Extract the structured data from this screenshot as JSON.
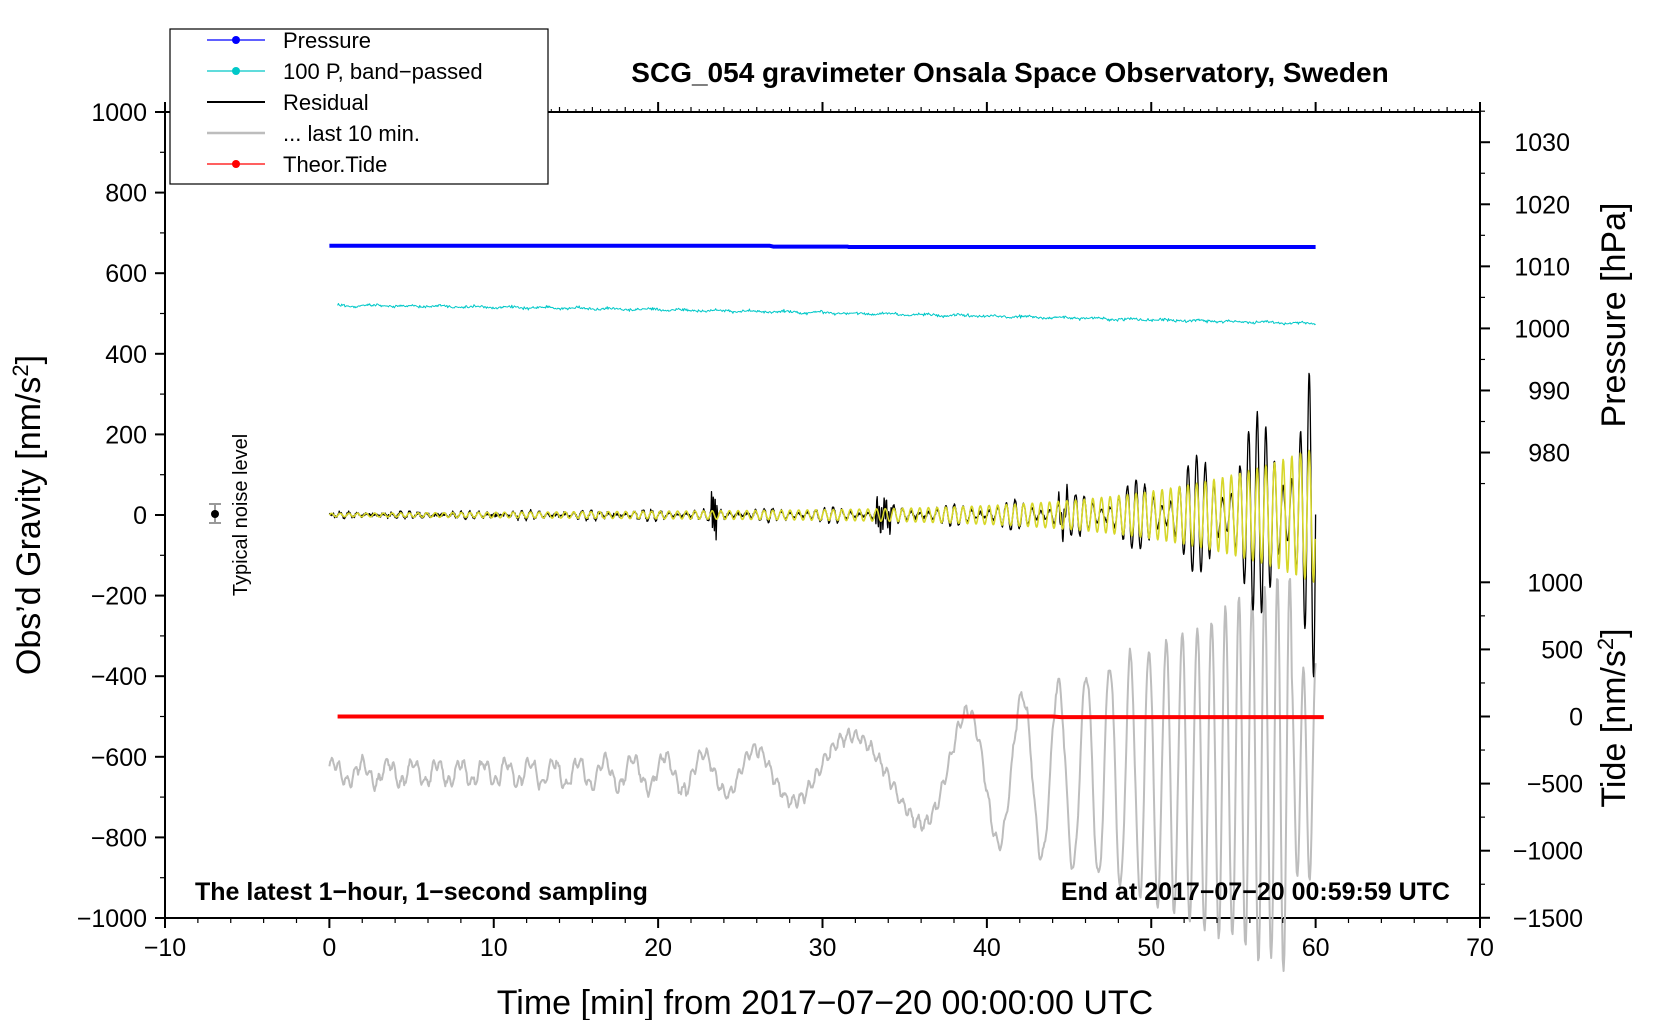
{
  "chart_data": {
    "type": "line",
    "title": "SCG_054 gravimeter Onsala Space Observatory, Sweden",
    "xlabel": "Time [min] from 2017−07−20 00:00:00 UTC",
    "ylabel_left": "Obs’d Gravity [nm/s",
    "ylabel_left_sup": "2",
    "ylabel_left_end": "]",
    "ylabel_right_pressure": "Pressure [hPa]",
    "ylabel_right_tide": "Tide [nm/s",
    "ylabel_right_tide_sup": "2",
    "ylabel_right_tide_end": "]",
    "xlim": [
      -10,
      70
    ],
    "ylim_gravity": [
      -1000,
      1000
    ],
    "x_ticks": [
      -10,
      0,
      10,
      20,
      30,
      40,
      50,
      60,
      70
    ],
    "x_tick_labels": [
      "−10",
      "0",
      "10",
      "20",
      "30",
      "40",
      "50",
      "60",
      "70"
    ],
    "gravity_ticks": [
      1000,
      800,
      600,
      400,
      200,
      0,
      -200,
      -400,
      -600,
      -800,
      -1000
    ],
    "gravity_tick_labels": [
      "1000",
      "800",
      "600",
      "400",
      "200",
      "0",
      "−200",
      "−400",
      "−600",
      "−800",
      "−1000"
    ],
    "pressure_axis": {
      "ticks": [
        1030,
        1020,
        1010,
        1000,
        990,
        980
      ],
      "tick_labels": [
        "1030",
        "1020",
        "1010",
        "1000",
        "990",
        "980"
      ],
      "gravity_equiv_at_1000hPa": 463,
      "gravity_per_hPa": 15.4
    },
    "tide_axis": {
      "ticks": [
        1000,
        500,
        0,
        -500,
        -1000,
        -1500
      ],
      "tick_labels": [
        "1000",
        "500",
        "0",
        "−500",
        "−1000",
        "−1500"
      ],
      "gravity_equiv_at_0": -500,
      "gravity_per_unit": 0.333
    },
    "series": [
      {
        "name": "Pressure",
        "color": "#0000ff",
        "style": "line-dot",
        "x_range": [
          0,
          60
        ],
        "gravity_values_start_end": [
          668,
          665
        ],
        "pressure_hPa": 1013.5
      },
      {
        "name": "100 P, band−passed",
        "color": "#00c8c8",
        "style": "line-dot",
        "x_range": [
          0.5,
          60
        ],
        "gravity_values_start_end": [
          520,
          475
        ]
      },
      {
        "name": "Residual",
        "color": "#000000",
        "style": "line",
        "x_range": [
          0,
          60
        ],
        "baseline": 0,
        "max_amplitude": 430,
        "min_value": -450
      },
      {
        "name": "... last 10 min.",
        "color": "#bdbdbd",
        "style": "line",
        "x_range": [
          0,
          60
        ],
        "baseline": -640,
        "max_value": -180,
        "min_value": -1080
      },
      {
        "name": "Theor.Tide",
        "color": "#ff0000",
        "style": "line-dot",
        "x_range": [
          0.5,
          60.5
        ],
        "gravity_value": -500,
        "tide_value": 0
      },
      {
        "name": "Filtered residual",
        "color": "#d7d72a",
        "style": "line",
        "x_range": [
          0,
          60
        ],
        "baseline": 0,
        "max_amplitude": 160
      }
    ],
    "legend": [
      {
        "label": "Pressure",
        "color": "#0000ff",
        "dot": true
      },
      {
        "label": "100 P, band−passed",
        "color": "#00c8c8",
        "dot": true
      },
      {
        "label": "Residual",
        "color": "#000000",
        "dot": false
      },
      {
        "label": "... last 10 min.",
        "color": "#bdbdbd",
        "dot": false
      },
      {
        "label": "Theor.Tide",
        "color": "#ff0000",
        "dot": true
      }
    ],
    "legend_position": "top-left",
    "noise_label": "Typical noise level",
    "noise_marker": {
      "x": -7,
      "y": 0,
      "err": 20
    },
    "annotation_left": "The latest 1−hour, 1−second sampling",
    "annotation_right": "End at 2017−07−20 00:59:59 UTC"
  }
}
